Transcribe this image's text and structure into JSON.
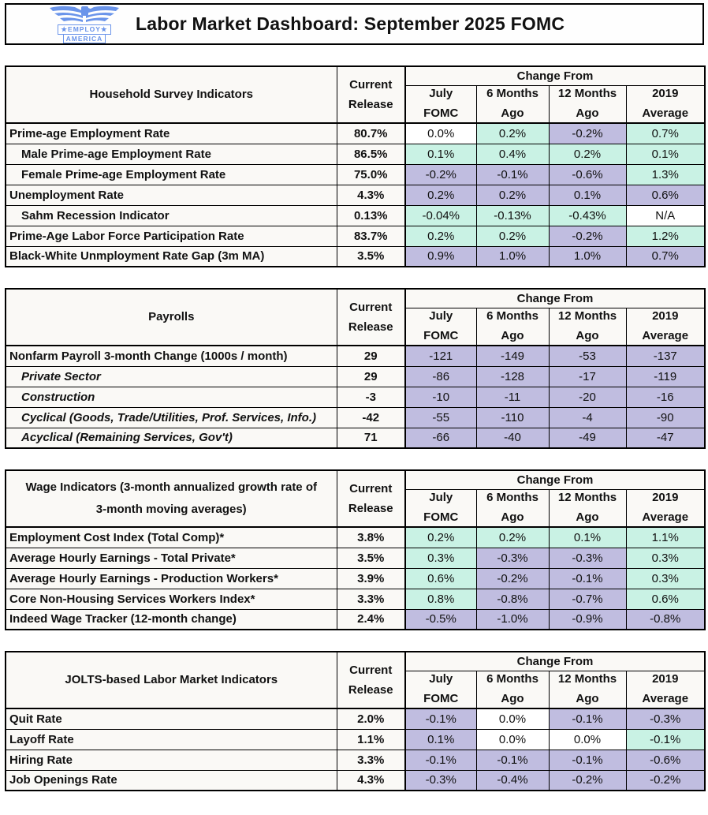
{
  "header": {
    "title": "Labor Market Dashboard: September 2025 FOMC",
    "logo": {
      "line1": "★EMPLOY★",
      "line2": "AMERICA"
    }
  },
  "colors": {
    "positive_change_bg": "#c9f2e4",
    "negative_change_bg": "#c0bde0",
    "neutral_change_bg": "#ffffff",
    "paper_cell_bg": "#faf9f6",
    "logo_blue": "#6a94ea",
    "border": "#000000"
  },
  "columns": {
    "current": [
      "Current",
      "Release"
    ],
    "change_from": "Change From",
    "sub": [
      [
        "July",
        "FOMC"
      ],
      [
        "6 Months",
        "Ago"
      ],
      [
        "12 Months",
        "Ago"
      ],
      [
        "2019",
        "Average"
      ]
    ]
  },
  "chart_data": [
    {
      "type": "table",
      "title": "Household Survey Indicators",
      "columns": [
        "Current Release",
        "Change From July FOMC",
        "Change From 6 Months Ago",
        "Change From 12 Months Ago",
        "Change From 2019 Average"
      ],
      "rows": [
        {
          "label": "Prime-age Employment Rate",
          "indent": 0,
          "italic": false,
          "current": "80.7%",
          "changes": [
            {
              "v": "0.0%",
              "s": "neu"
            },
            {
              "v": "0.2%",
              "s": "pos"
            },
            {
              "v": "-0.2%",
              "s": "neg"
            },
            {
              "v": "0.7%",
              "s": "pos"
            }
          ]
        },
        {
          "label": "Male Prime-age Employment Rate",
          "indent": 1,
          "italic": false,
          "current": "86.5%",
          "changes": [
            {
              "v": "0.1%",
              "s": "pos"
            },
            {
              "v": "0.4%",
              "s": "pos"
            },
            {
              "v": "0.2%",
              "s": "pos"
            },
            {
              "v": "0.1%",
              "s": "pos"
            }
          ]
        },
        {
          "label": "Female Prime-age Employment Rate",
          "indent": 1,
          "italic": false,
          "current": "75.0%",
          "changes": [
            {
              "v": "-0.2%",
              "s": "neg"
            },
            {
              "v": "-0.1%",
              "s": "neg"
            },
            {
              "v": "-0.6%",
              "s": "neg"
            },
            {
              "v": "1.3%",
              "s": "pos"
            }
          ]
        },
        {
          "label": "Unemployment Rate",
          "indent": 0,
          "italic": false,
          "current": "4.3%",
          "changes": [
            {
              "v": "0.2%",
              "s": "neg"
            },
            {
              "v": "0.2%",
              "s": "neg"
            },
            {
              "v": "0.1%",
              "s": "neg"
            },
            {
              "v": "0.6%",
              "s": "neg"
            }
          ]
        },
        {
          "label": "Sahm Recession Indicator",
          "indent": 1,
          "italic": false,
          "current": "0.13%",
          "changes": [
            {
              "v": "-0.04%",
              "s": "pos"
            },
            {
              "v": "-0.13%",
              "s": "pos"
            },
            {
              "v": "-0.43%",
              "s": "pos"
            },
            {
              "v": "N/A",
              "s": "neu"
            }
          ]
        },
        {
          "label": "Prime-Age Labor Force Participation Rate",
          "indent": 0,
          "italic": false,
          "current": "83.7%",
          "changes": [
            {
              "v": "0.2%",
              "s": "pos"
            },
            {
              "v": "0.2%",
              "s": "pos"
            },
            {
              "v": "-0.2%",
              "s": "neg"
            },
            {
              "v": "1.2%",
              "s": "pos"
            }
          ]
        },
        {
          "label": "Black-White Unmployment Rate Gap (3m MA)",
          "indent": 0,
          "italic": false,
          "current": "3.5%",
          "changes": [
            {
              "v": "0.9%",
              "s": "neg"
            },
            {
              "v": "1.0%",
              "s": "neg"
            },
            {
              "v": "1.0%",
              "s": "neg"
            },
            {
              "v": "0.7%",
              "s": "neg"
            }
          ]
        }
      ]
    },
    {
      "type": "table",
      "title": "Payrolls",
      "columns": [
        "Current Release",
        "Change From July FOMC",
        "Change From 6 Months Ago",
        "Change From 12 Months Ago",
        "Change From 2019 Average"
      ],
      "rows": [
        {
          "label": "Nonfarm Payroll 3-month Change (1000s / month)",
          "indent": 0,
          "italic": false,
          "current": "29",
          "changes": [
            {
              "v": "-121",
              "s": "neg"
            },
            {
              "v": "-149",
              "s": "neg"
            },
            {
              "v": "-53",
              "s": "neg"
            },
            {
              "v": "-137",
              "s": "neg"
            }
          ]
        },
        {
          "label": "Private Sector",
          "indent": 1,
          "italic": true,
          "current": "29",
          "changes": [
            {
              "v": "-86",
              "s": "neg"
            },
            {
              "v": "-128",
              "s": "neg"
            },
            {
              "v": "-17",
              "s": "neg"
            },
            {
              "v": "-119",
              "s": "neg"
            }
          ]
        },
        {
          "label": "Construction",
          "indent": 1,
          "italic": true,
          "current": "-3",
          "changes": [
            {
              "v": "-10",
              "s": "neg"
            },
            {
              "v": "-11",
              "s": "neg"
            },
            {
              "v": "-20",
              "s": "neg"
            },
            {
              "v": "-16",
              "s": "neg"
            }
          ]
        },
        {
          "label": "Cyclical (Goods, Trade/Utilities, Prof. Services, Info.)",
          "indent": 1,
          "italic": true,
          "current": "-42",
          "changes": [
            {
              "v": "-55",
              "s": "neg"
            },
            {
              "v": "-110",
              "s": "neg"
            },
            {
              "v": "-4",
              "s": "neg"
            },
            {
              "v": "-90",
              "s": "neg"
            }
          ]
        },
        {
          "label": "Acyclical (Remaining Services, Gov't)",
          "indent": 1,
          "italic": true,
          "current": "71",
          "changes": [
            {
              "v": "-66",
              "s": "neg"
            },
            {
              "v": "-40",
              "s": "neg"
            },
            {
              "v": "-49",
              "s": "neg"
            },
            {
              "v": "-47",
              "s": "neg"
            }
          ]
        }
      ]
    },
    {
      "type": "table",
      "title": "Wage Indicators (3-month annualized growth rate of 3-month moving averages)",
      "columns": [
        "Current Release",
        "Change From July FOMC",
        "Change From 6 Months Ago",
        "Change From 12 Months Ago",
        "Change From 2019 Average"
      ],
      "rows": [
        {
          "label": "Employment Cost Index (Total Comp)*",
          "indent": 0,
          "italic": false,
          "current": "3.8%",
          "changes": [
            {
              "v": "0.2%",
              "s": "pos"
            },
            {
              "v": "0.2%",
              "s": "pos"
            },
            {
              "v": "0.1%",
              "s": "pos"
            },
            {
              "v": "1.1%",
              "s": "pos"
            }
          ]
        },
        {
          "label": "Average Hourly Earnings - Total Private*",
          "indent": 0,
          "italic": false,
          "current": "3.5%",
          "changes": [
            {
              "v": "0.3%",
              "s": "pos"
            },
            {
              "v": "-0.3%",
              "s": "neg"
            },
            {
              "v": "-0.3%",
              "s": "neg"
            },
            {
              "v": "0.3%",
              "s": "pos"
            }
          ]
        },
        {
          "label": "Average Hourly Earnings - Production Workers*",
          "indent": 0,
          "italic": false,
          "current": "3.9%",
          "changes": [
            {
              "v": "0.6%",
              "s": "pos"
            },
            {
              "v": "-0.2%",
              "s": "neg"
            },
            {
              "v": "-0.1%",
              "s": "neg"
            },
            {
              "v": "0.3%",
              "s": "pos"
            }
          ]
        },
        {
          "label": "Core Non-Housing Services Workers Index*",
          "indent": 0,
          "italic": false,
          "current": "3.3%",
          "changes": [
            {
              "v": "0.8%",
              "s": "pos"
            },
            {
              "v": "-0.8%",
              "s": "neg"
            },
            {
              "v": "-0.7%",
              "s": "neg"
            },
            {
              "v": "0.6%",
              "s": "pos"
            }
          ]
        },
        {
          "label": "Indeed Wage Tracker (12-month change)",
          "indent": 0,
          "italic": false,
          "current": "2.4%",
          "changes": [
            {
              "v": "-0.5%",
              "s": "neg"
            },
            {
              "v": "-1.0%",
              "s": "neg"
            },
            {
              "v": "-0.9%",
              "s": "neg"
            },
            {
              "v": "-0.8%",
              "s": "neg"
            }
          ]
        }
      ]
    },
    {
      "type": "table",
      "title": "JOLTS-based Labor Market Indicators",
      "columns": [
        "Current Release",
        "Change From July FOMC",
        "Change From 6 Months Ago",
        "Change From 12 Months Ago",
        "Change From 2019 Average"
      ],
      "rows": [
        {
          "label": "Quit Rate",
          "indent": 0,
          "italic": false,
          "current": "2.0%",
          "changes": [
            {
              "v": "-0.1%",
              "s": "neg"
            },
            {
              "v": "0.0%",
              "s": "neu"
            },
            {
              "v": "-0.1%",
              "s": "neg"
            },
            {
              "v": "-0.3%",
              "s": "neg"
            }
          ]
        },
        {
          "label": "Layoff Rate",
          "indent": 0,
          "italic": false,
          "current": "1.1%",
          "changes": [
            {
              "v": "0.1%",
              "s": "neg"
            },
            {
              "v": "0.0%",
              "s": "neu"
            },
            {
              "v": "0.0%",
              "s": "neu"
            },
            {
              "v": "-0.1%",
              "s": "pos"
            }
          ]
        },
        {
          "label": "Hiring Rate",
          "indent": 0,
          "italic": false,
          "current": "3.3%",
          "changes": [
            {
              "v": "-0.1%",
              "s": "neg"
            },
            {
              "v": "-0.1%",
              "s": "neg"
            },
            {
              "v": "-0.1%",
              "s": "neg"
            },
            {
              "v": "-0.6%",
              "s": "neg"
            }
          ]
        },
        {
          "label": "Job Openings Rate",
          "indent": 0,
          "italic": false,
          "current": "4.3%",
          "changes": [
            {
              "v": "-0.3%",
              "s": "neg"
            },
            {
              "v": "-0.4%",
              "s": "neg"
            },
            {
              "v": "-0.2%",
              "s": "neg"
            },
            {
              "v": "-0.2%",
              "s": "neg"
            }
          ]
        }
      ]
    }
  ]
}
